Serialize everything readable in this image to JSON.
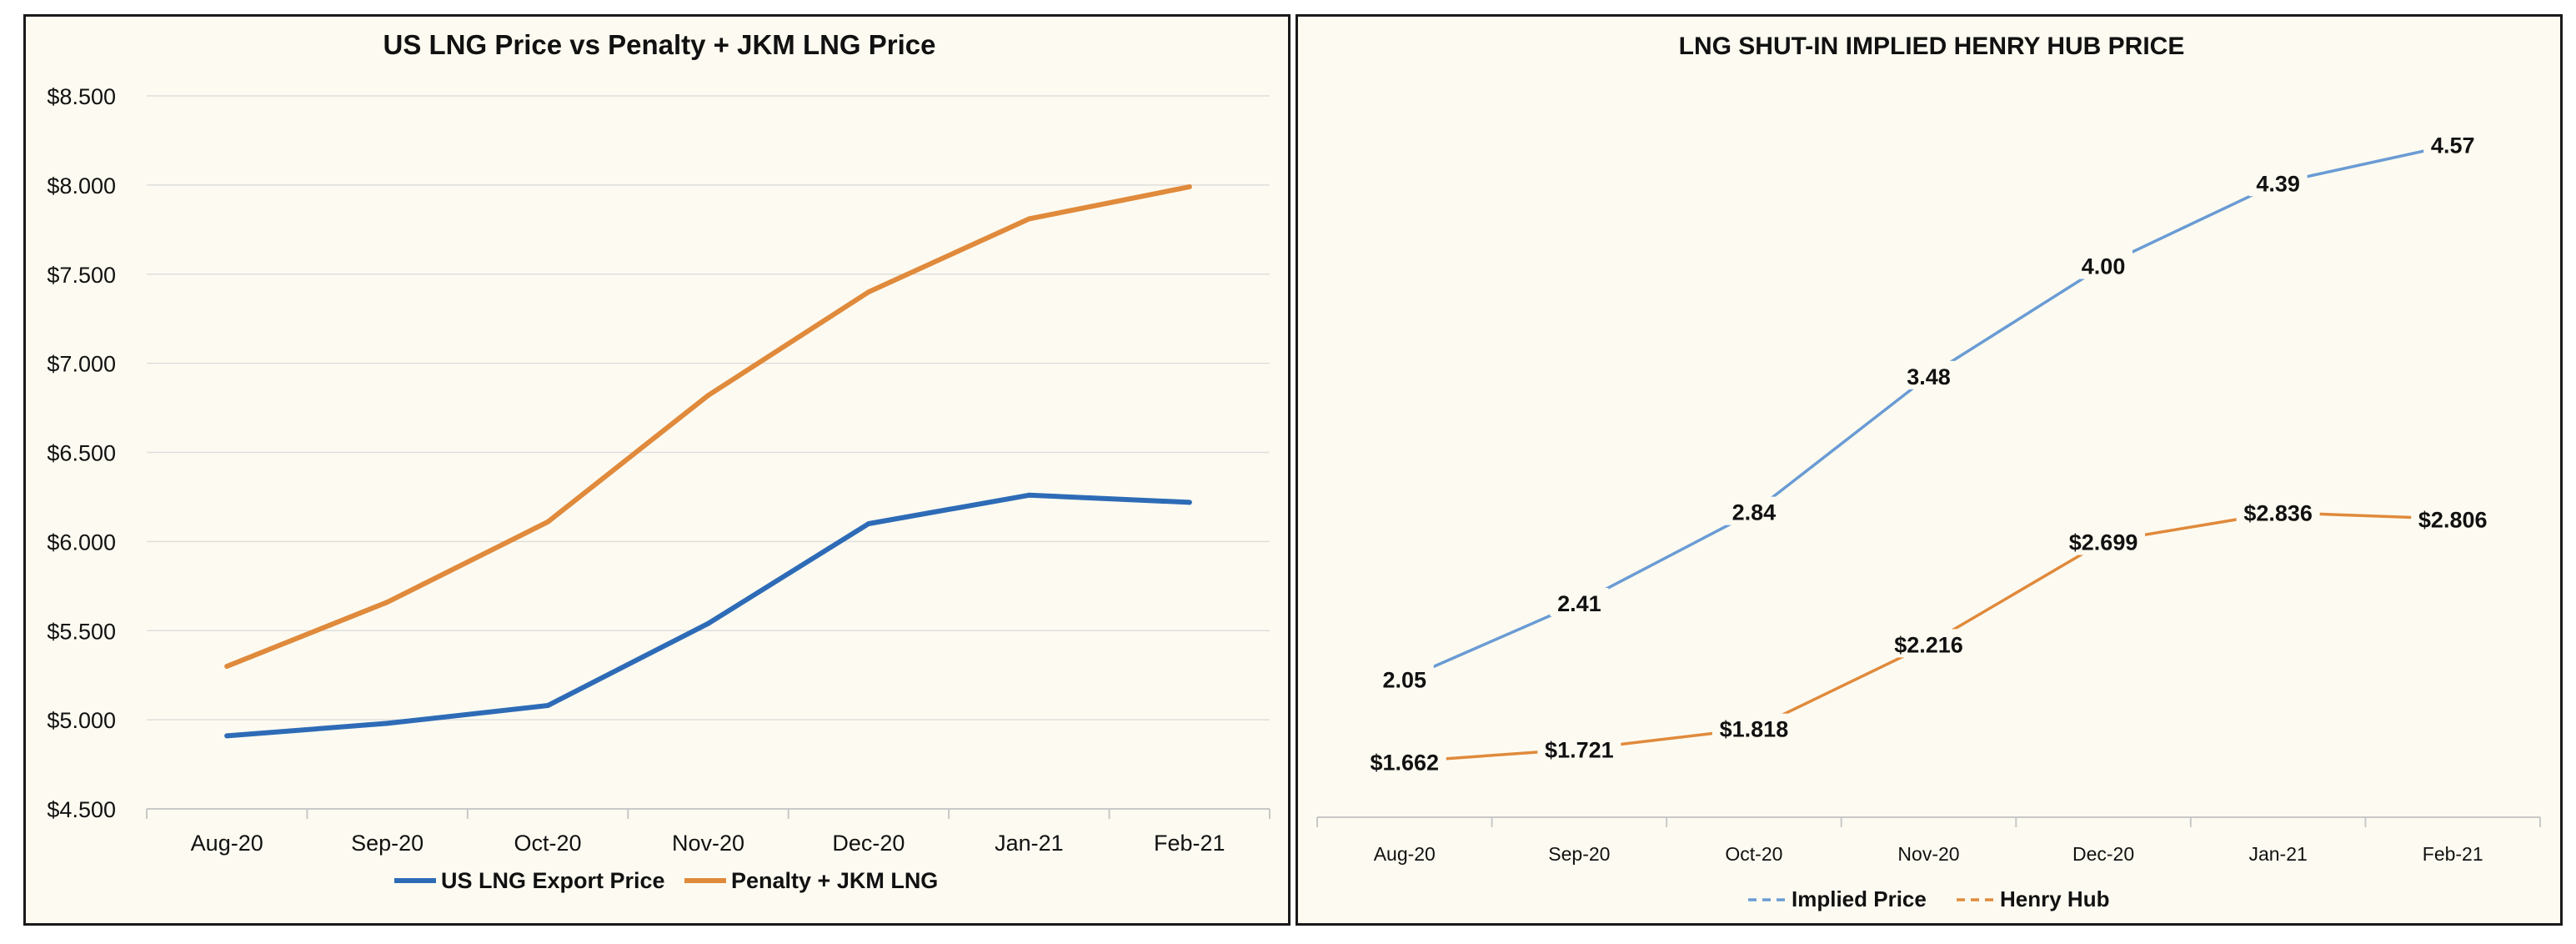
{
  "chart_data": [
    {
      "type": "line",
      "title": "US LNG Price vs Penalty + JKM LNG Price",
      "categories": [
        "Aug-20",
        "Sep-20",
        "Oct-20",
        "Nov-20",
        "Dec-20",
        "Jan-21",
        "Feb-21"
      ],
      "series": [
        {
          "name": "US LNG Export Price",
          "color": "#2e6bb7",
          "values": [
            4.91,
            4.98,
            5.08,
            5.54,
            6.1,
            6.26,
            6.22
          ]
        },
        {
          "name": "Penalty + JKM LNG",
          "color": "#e08a3c",
          "values": [
            5.3,
            5.66,
            6.11,
            6.82,
            7.4,
            7.81,
            7.99
          ]
        }
      ],
      "ylim": [
        4.5,
        8.5
      ],
      "yticks": [
        4.5,
        5.0,
        5.5,
        6.0,
        6.5,
        7.0,
        7.5,
        8.0,
        8.5
      ],
      "ytick_labels": [
        "$4.500",
        "$5.000",
        "$5.500",
        "$6.000",
        "$6.500",
        "$7.000",
        "$7.500",
        "$8.000",
        "$8.500"
      ],
      "grid": true,
      "legend": "bottom"
    },
    {
      "type": "line",
      "title": "LNG SHUT-IN IMPLIED HENRY HUB PRICE",
      "categories": [
        "Aug-20",
        "Sep-20",
        "Oct-20",
        "Nov-20",
        "Dec-20",
        "Jan-21",
        "Feb-21"
      ],
      "series": [
        {
          "name": "Implied Price",
          "color": "#6a9bd4",
          "values": [
            2.05,
            2.41,
            2.84,
            3.48,
            4.0,
            4.39,
            4.57
          ],
          "labels": [
            "2.05",
            "2.41",
            "2.84",
            "3.48",
            "4.00",
            "4.39",
            "4.57"
          ]
        },
        {
          "name": "Henry Hub",
          "color": "#e08a3c",
          "values": [
            1.662,
            1.721,
            1.818,
            2.216,
            2.699,
            2.836,
            2.806
          ],
          "labels": [
            "$1.662",
            "$1.721",
            "$1.818",
            "$2.216",
            "$2.699",
            "$2.836",
            "$2.806"
          ]
        }
      ],
      "ylim": [
        1.4,
        4.8
      ],
      "grid": false,
      "legend": "bottom"
    }
  ]
}
